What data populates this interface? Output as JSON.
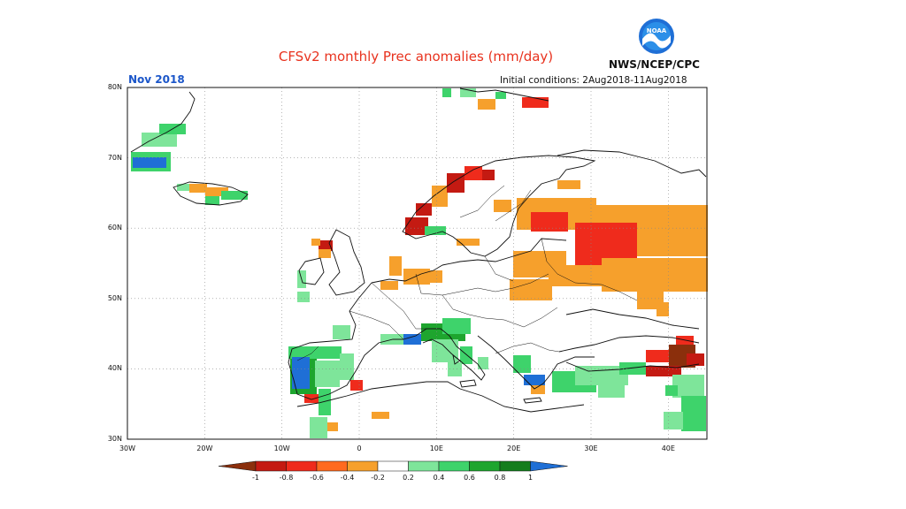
{
  "header": {
    "title": "CFSv2 monthly Prec anomalies (mm/day)",
    "agency": "NWS/NCEP/CPC",
    "logo_text": "NOAA",
    "month": "Nov 2018",
    "initial_conditions": "Initial conditions: 2Aug2018-11Aug2018"
  },
  "map": {
    "lon_range": [
      -30,
      45
    ],
    "lat_range": [
      30,
      80
    ],
    "lat_labels": [
      "80N",
      "70N",
      "60N",
      "50N",
      "40N",
      "30N"
    ],
    "lon_labels": [
      "30W",
      "20W",
      "10W",
      "0",
      "10E",
      "20E",
      "30E",
      "40E"
    ],
    "grid_lines": true
  },
  "colorbar": {
    "ticks": [
      "-1",
      "-0.8",
      "-0.6",
      "-0.4",
      "-0.2",
      "0.2",
      "0.4",
      "0.6",
      "0.8",
      "1"
    ],
    "colors": [
      "#8b2f0c",
      "#c41a12",
      "#ef2b1c",
      "#ff6a1f",
      "#f6a02c",
      "#ffffff",
      "#7ee59a",
      "#3ed36b",
      "#1ea52e",
      "#147d1d",
      "#1f6fd6"
    ]
  },
  "anomaly_colors": {
    "dry_strong": "#c41a12",
    "dry_very_strong": "#8b2f0c",
    "dry_moderate": "#ef2b1c",
    "dry_weak": "#f6a02c",
    "wet_weak": "#7ee59a",
    "wet_moderate": "#3ed36b",
    "wet_strong": "#1ea52e",
    "wet_very_strong": "#147d1d",
    "wet_extreme": "#1f6fd6"
  }
}
